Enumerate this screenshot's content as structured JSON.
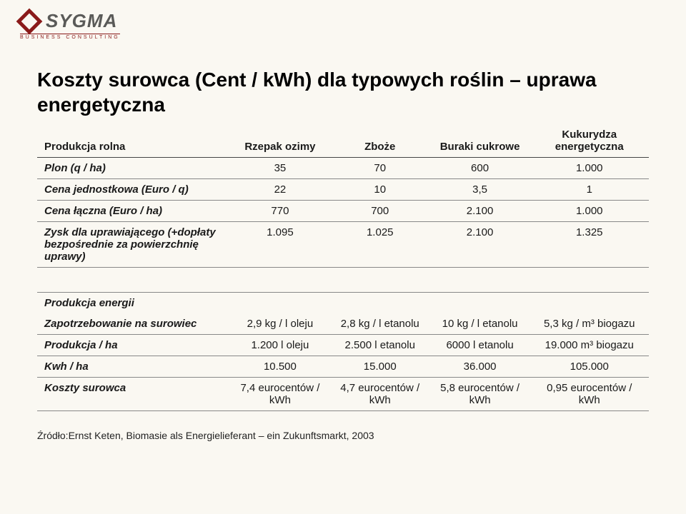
{
  "logo": {
    "name": "SYGMA",
    "subtitle": "BUSINESS CONSULTING"
  },
  "title": "Koszty surowca (Cent / kWh) dla typowych roślin – uprawa energetyczna",
  "table": {
    "headers": {
      "rowlabel": "Produkcja rolna",
      "c1": "Rzepak ozimy",
      "c2": "Zboże",
      "c3": "Buraki cukrowe",
      "c4": "Kukurydza energetyczna"
    },
    "rows1": [
      {
        "label": "Plon (q / ha)",
        "c1": "35",
        "c2": "70",
        "c3": "600",
        "c4": "1.000"
      },
      {
        "label": "Cena jednostkowa (Euro / q)",
        "c1": "22",
        "c2": "10",
        "c3": "3,5",
        "c4": "1"
      },
      {
        "label": "Cena łączna (Euro / ha)",
        "c1": "770",
        "c2": "700",
        "c3": "2.100",
        "c4": "1.000"
      },
      {
        "label": "Zysk dla uprawiającego (+dopłaty bezpośrednie za powierzchnię uprawy)",
        "c1": "1.095",
        "c2": "1.025",
        "c3": "2.100",
        "c4": "1.325"
      }
    ],
    "section2_label": "Produkcja energii",
    "rows2": [
      {
        "label": "Zapotrzebowanie na surowiec",
        "c1": "2,9 kg / l oleju",
        "c2": "2,8 kg / l etanolu",
        "c3": "10 kg / l etanolu",
        "c4": "5,3 kg / m³ biogazu"
      },
      {
        "label": "Produkcja / ha",
        "c1": "1.200 l oleju",
        "c2": "2.500 l etanolu",
        "c3": "6000 l etanolu",
        "c4": "19.000 m³ biogazu"
      },
      {
        "label": "Kwh / ha",
        "c1": "10.500",
        "c2": "15.000",
        "c3": "36.000",
        "c4": "105.000"
      },
      {
        "label": "Koszty surowca",
        "c1": "7,4 eurocentów / kWh",
        "c2": "4,7 eurocentów / kWh",
        "c3": "5,8 eurocentów / kWh",
        "c4": "0,95 eurocentów / kWh"
      }
    ]
  },
  "source": "Źródło:Ernst Keten, Biomasie als Energielieferant – ein Zukunftsmarkt, 2003"
}
